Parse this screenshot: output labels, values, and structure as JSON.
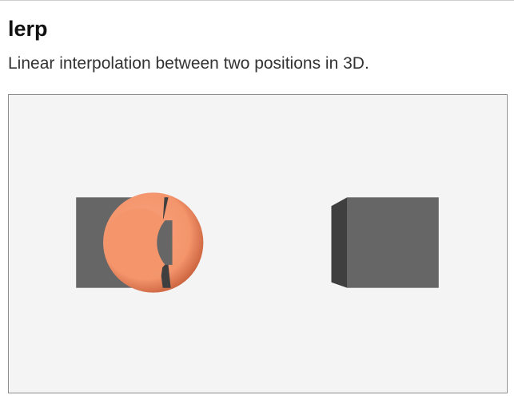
{
  "demo": {
    "title": "lerp",
    "description": "Linear interpolation between two positions in 3D."
  },
  "scene": {
    "background_color": "#f4f4f4",
    "cube_color": "#666666",
    "cube_side_color": "#3f3f3f",
    "sphere_color": "#f4956c",
    "sphere_shadow_color": "#c9613d"
  }
}
